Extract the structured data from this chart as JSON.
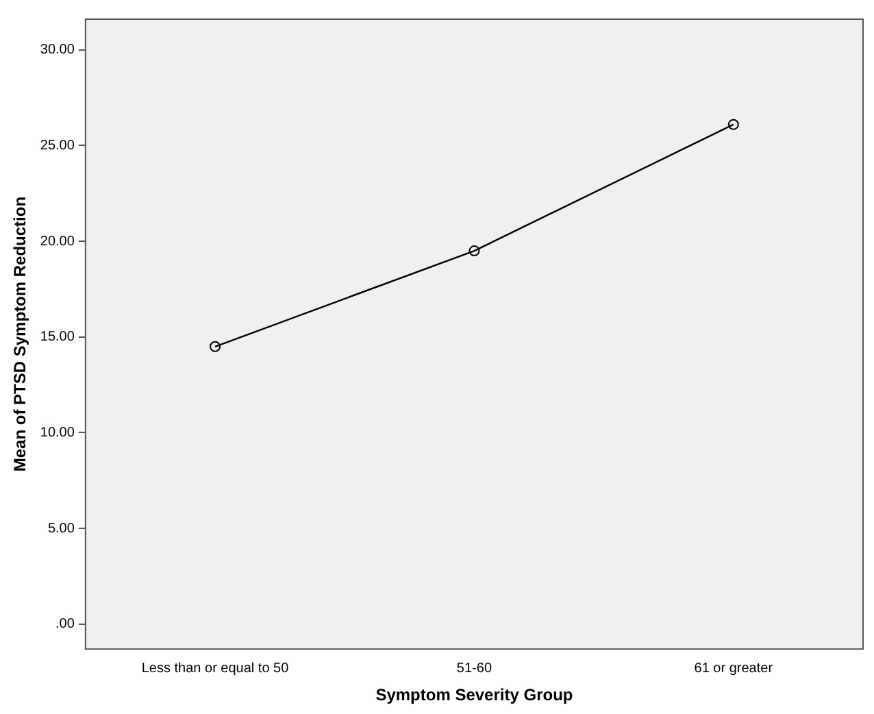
{
  "chart_data": {
    "type": "line",
    "xlabel": "Symptom Severity Group",
    "ylabel": "Mean of PTSD Symptom Reduction",
    "categories": [
      "Less than or equal to 50",
      "51-60",
      "61 or greater"
    ],
    "series": [
      {
        "color": "#000000",
        "values": [
          14.5,
          19.5,
          26.1
        ]
      }
    ],
    "ylim": [
      -1.3,
      31.6
    ],
    "yticks": [
      {
        "value": 0,
        "label": ".00"
      },
      {
        "value": 5,
        "label": "5.00"
      },
      {
        "value": 10,
        "label": "10.00"
      },
      {
        "value": 15,
        "label": "15.00"
      },
      {
        "value": 20,
        "label": "20.00"
      },
      {
        "value": 25,
        "label": "25.00"
      },
      {
        "value": 30,
        "label": "30.00"
      }
    ],
    "grid": false,
    "legend": false,
    "marker": "circle",
    "line_style": "solid"
  }
}
